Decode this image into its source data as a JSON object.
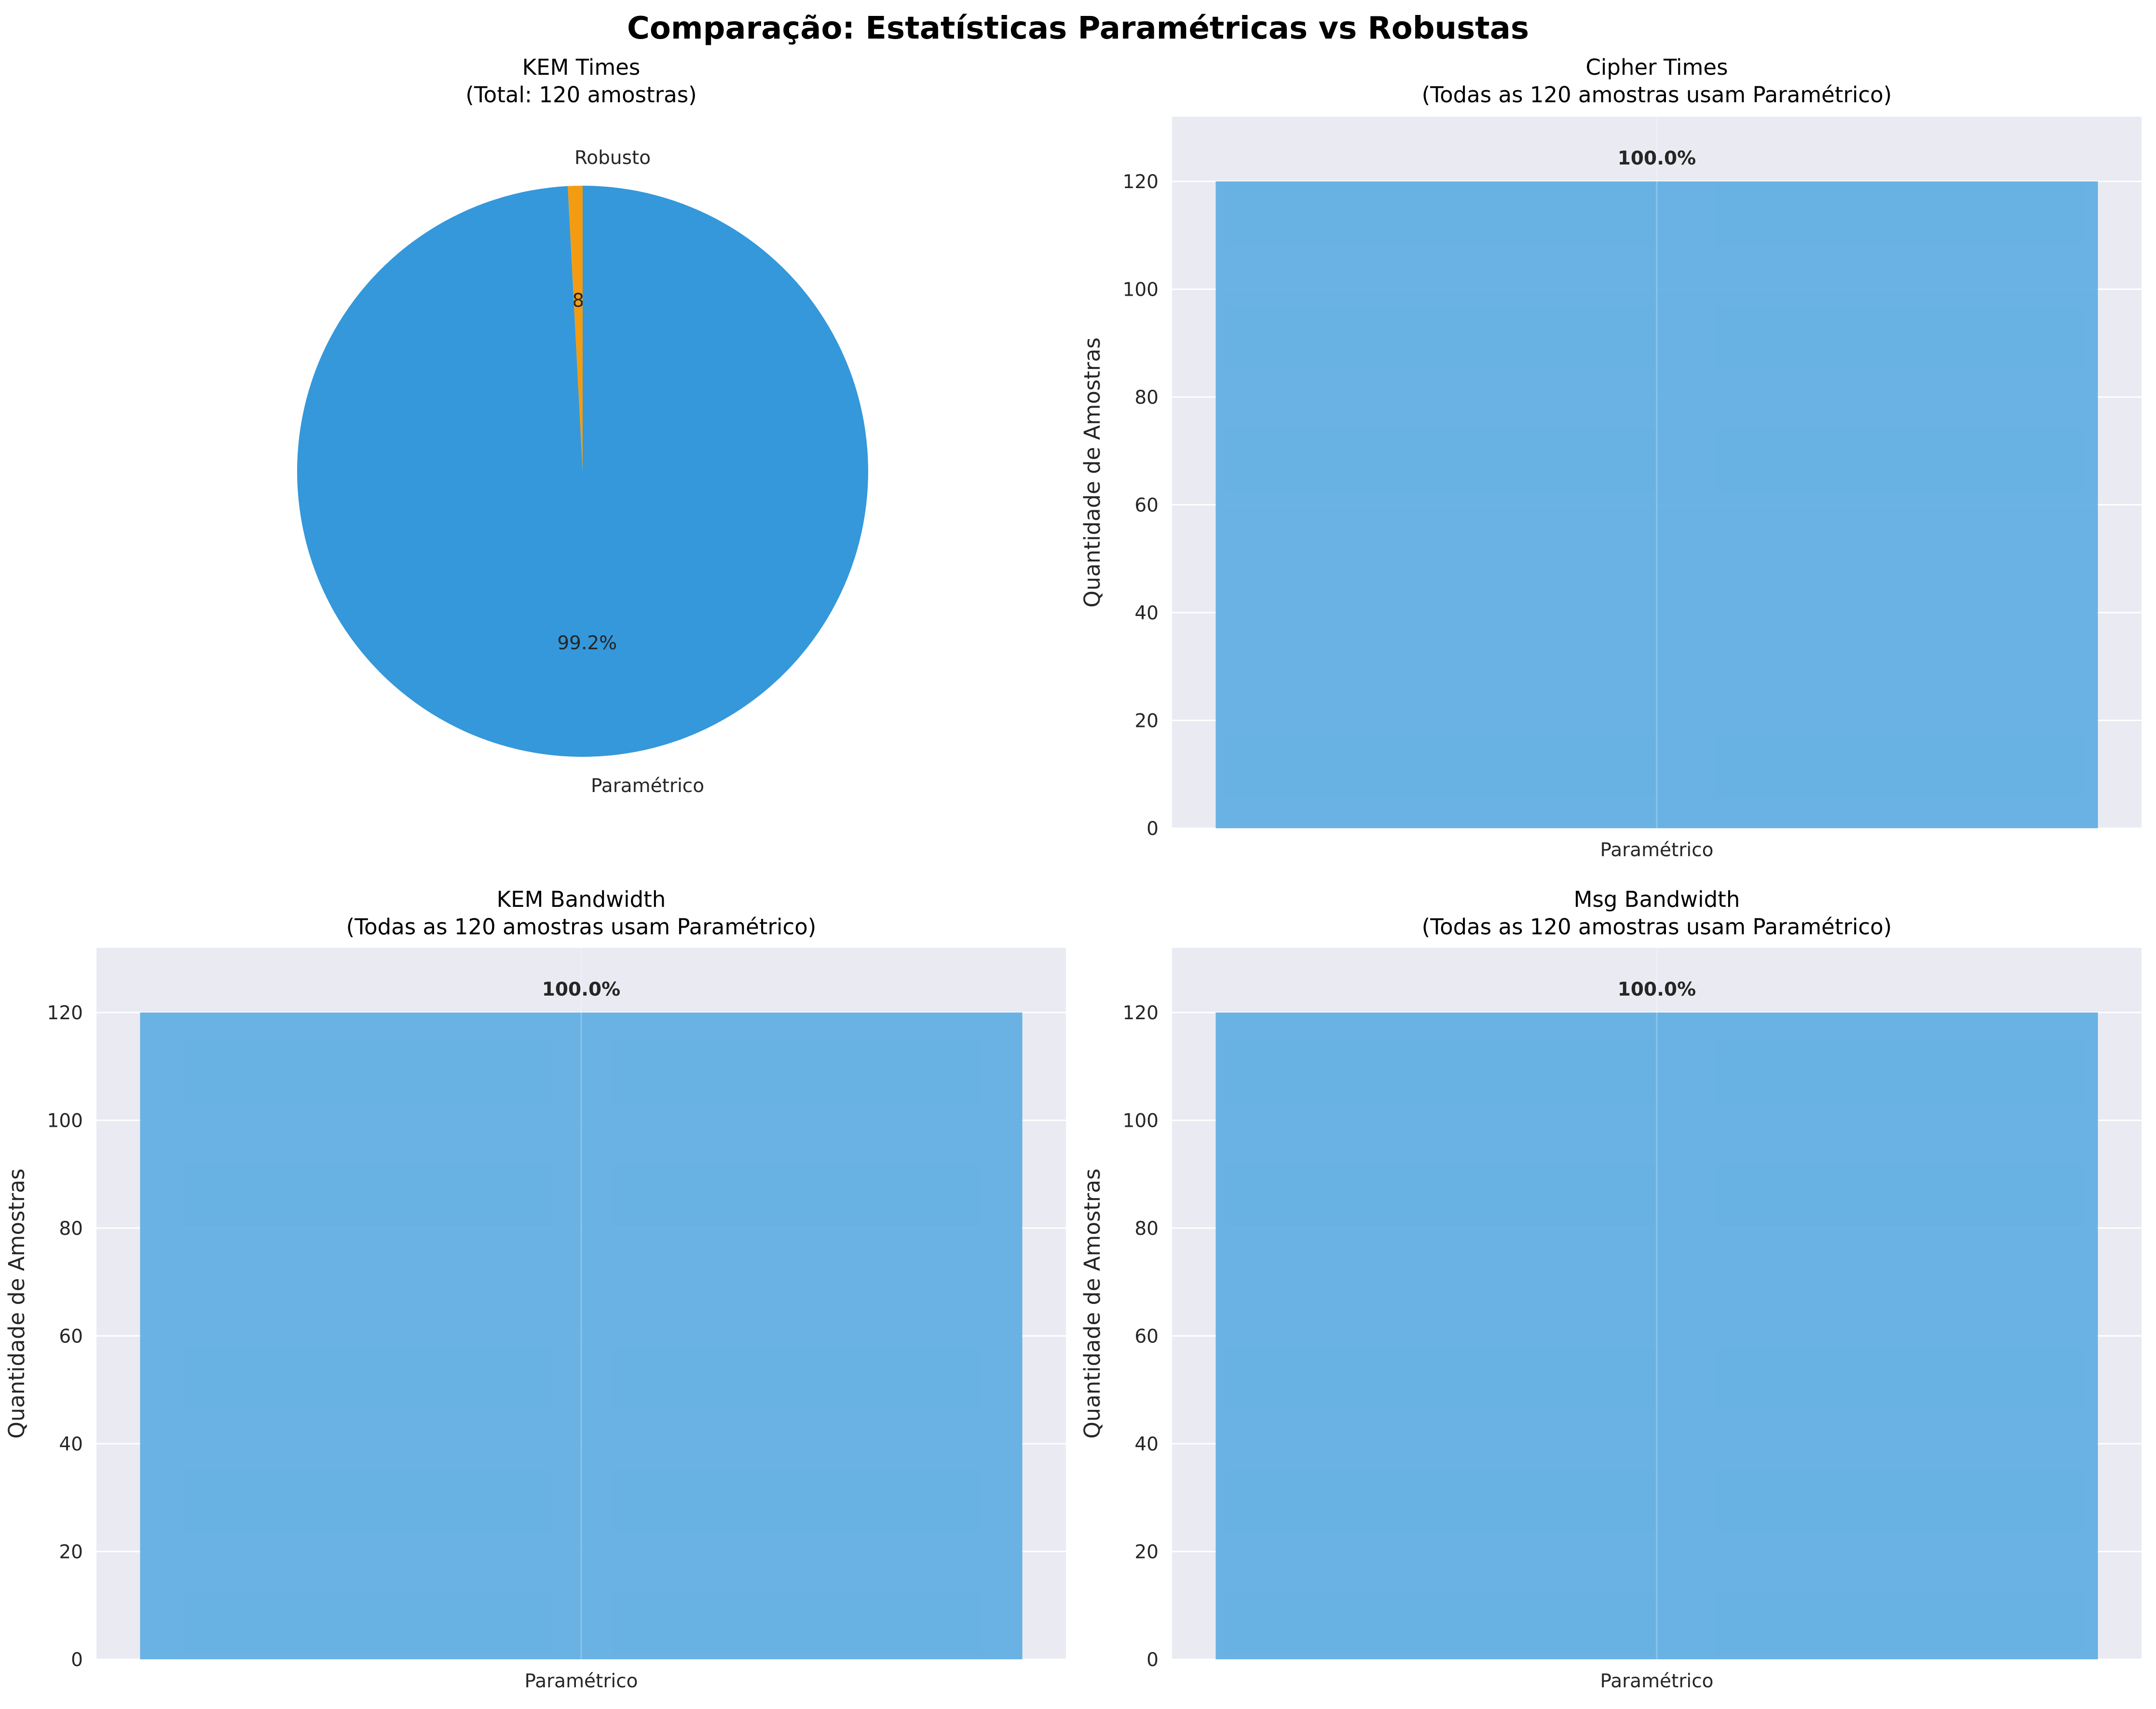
{
  "figure": {
    "title": "Comparação: Estatísticas Paramétricas vs Robustas"
  },
  "colors": {
    "background_axes": "#EAEAF2",
    "grid": "#FFFFFF",
    "parametric": "#3498DB",
    "robust": "#F39C12",
    "bar_fill": "#5DADE2"
  },
  "chart_data": [
    {
      "type": "pie",
      "title": [
        "KEM Times",
        "(Total: 120 amostras)"
      ],
      "categories": [
        "Robusto",
        "Paramétrico"
      ],
      "values": [
        1,
        119
      ],
      "percent_labels": [
        "0.8%",
        "99.2%"
      ],
      "colors": [
        "#F39C12",
        "#3498DB"
      ],
      "start": "top, counterclockwise"
    },
    {
      "type": "bar",
      "title": [
        "Cipher Times",
        "(Todas as 120 amostras usam Paramétrico)"
      ],
      "categories": [
        "Paramétrico"
      ],
      "values": [
        120
      ],
      "value_labels": [
        "100.0%"
      ],
      "ylabel": "Quantidade de Amostras",
      "ylim": [
        0,
        132
      ],
      "yticks": [
        0,
        20,
        40,
        60,
        80,
        100,
        120
      ],
      "grid": true
    },
    {
      "type": "bar",
      "title": [
        "KEM Bandwidth",
        "(Todas as 120 amostras usam Paramétrico)"
      ],
      "categories": [
        "Paramétrico"
      ],
      "values": [
        120
      ],
      "value_labels": [
        "100.0%"
      ],
      "ylabel": "Quantidade de Amostras",
      "ylim": [
        0,
        132
      ],
      "yticks": [
        0,
        20,
        40,
        60,
        80,
        100,
        120
      ],
      "grid": true
    },
    {
      "type": "bar",
      "title": [
        "Msg Bandwidth",
        "(Todas as 120 amostras usam Paramétrico)"
      ],
      "categories": [
        "Paramétrico"
      ],
      "values": [
        120
      ],
      "value_labels": [
        "100.0%"
      ],
      "ylabel": "Quantidade de Amostras",
      "ylim": [
        0,
        132
      ],
      "yticks": [
        0,
        20,
        40,
        60,
        80,
        100,
        120
      ],
      "grid": true
    }
  ]
}
